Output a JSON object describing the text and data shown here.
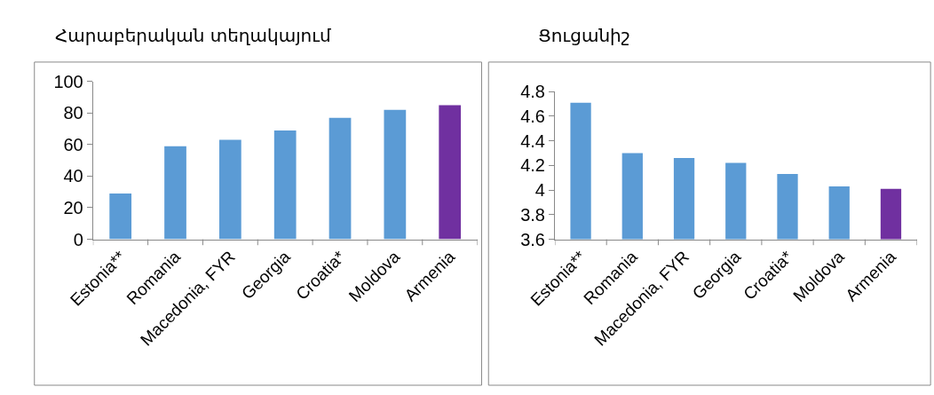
{
  "chart_data": [
    {
      "type": "bar",
      "title": "Հարաբերական տեղակայում",
      "categories": [
        "Estonia**",
        "Romania",
        "Macedonia, FYR",
        "Georgia",
        "Croatia*",
        "Moldova",
        "Armenia"
      ],
      "values": [
        29,
        59,
        63,
        69,
        77,
        82,
        85
      ],
      "colors": [
        "#5b9bd5",
        "#5b9bd5",
        "#5b9bd5",
        "#5b9bd5",
        "#5b9bd5",
        "#5b9bd5",
        "#7030a0"
      ],
      "ylim": [
        0,
        100
      ],
      "yticks": [
        0,
        20,
        40,
        60,
        80,
        100
      ]
    },
    {
      "type": "bar",
      "title": "Ցուցանիշ",
      "categories": [
        "Estonia**",
        "Romania",
        "Macedonia, FYR",
        "Georgia",
        "Croatia*",
        "Moldova",
        "Armenia"
      ],
      "values": [
        4.71,
        4.3,
        4.26,
        4.22,
        4.13,
        4.03,
        4.01
      ],
      "colors": [
        "#5b9bd5",
        "#5b9bd5",
        "#5b9bd5",
        "#5b9bd5",
        "#5b9bd5",
        "#5b9bd5",
        "#7030a0"
      ],
      "ylim": [
        3.6,
        4.8
      ],
      "yticks": [
        3.6,
        3.8,
        4,
        4.2,
        4.4,
        4.6,
        4.8
      ]
    }
  ]
}
